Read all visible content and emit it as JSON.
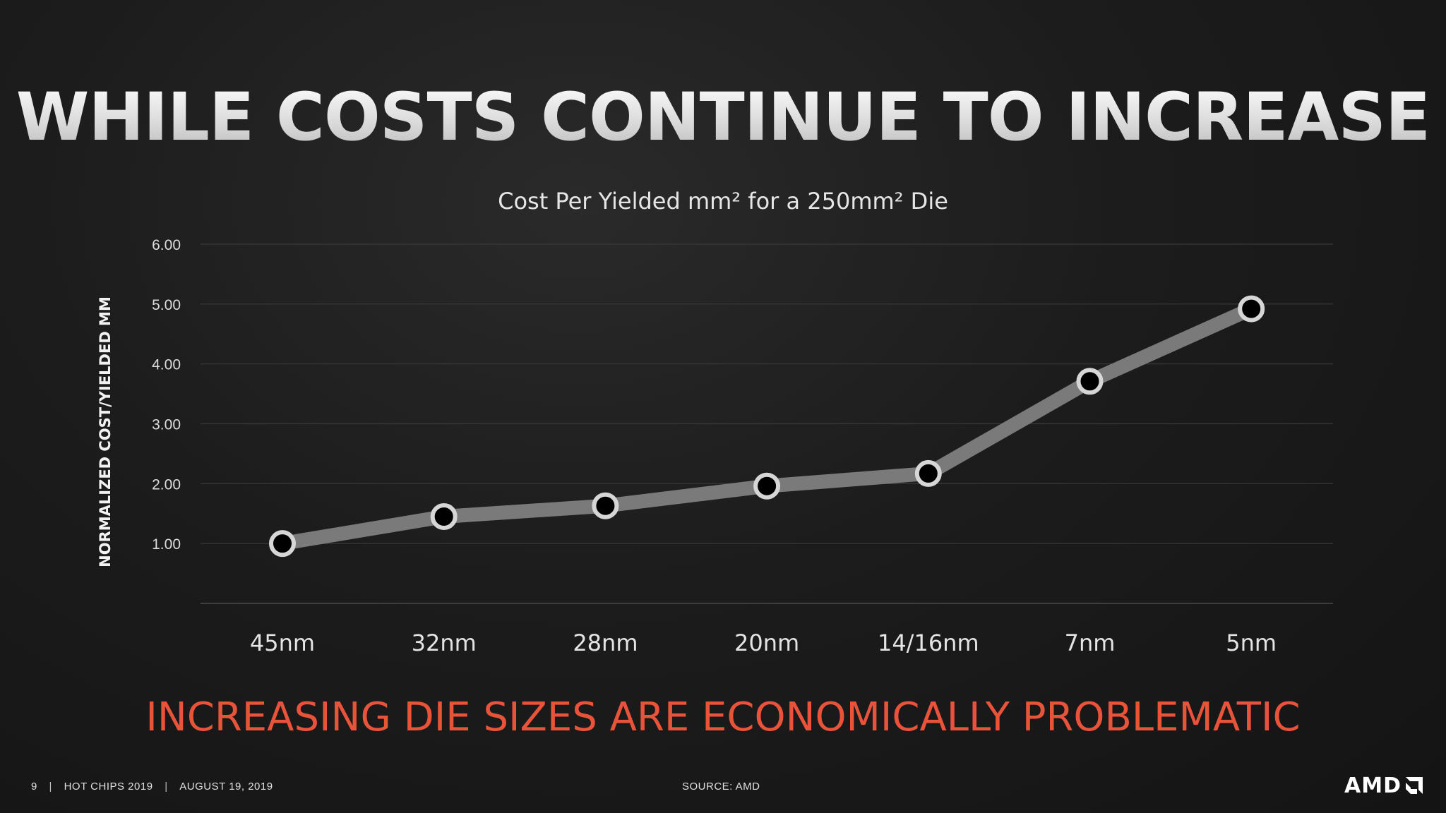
{
  "slide": {
    "title": "WHILE COSTS CONTINUE TO INCREASE",
    "subtitle": "INCREASING DIE SIZES ARE ECONOMICALLY PROBLEMATIC",
    "subtitle_color": "#e8533a"
  },
  "footer": {
    "page_number": "9",
    "event": "HOT CHIPS 2019",
    "date": "AUGUST 19, 2019",
    "separator": "|",
    "source": "SOURCE: AMD",
    "logo_text": "AMD"
  },
  "chart_data": {
    "type": "line",
    "title": "Cost Per Yielded mm² for a 250mm² Die",
    "xlabel": "",
    "ylabel": "NORMALIZED COST/YIELDED MM",
    "categories": [
      "45nm",
      "32nm",
      "28nm",
      "20nm",
      "14/16nm",
      "7nm",
      "5nm"
    ],
    "series": [
      {
        "values": [
          1.0,
          1.45,
          1.63,
          1.96,
          2.17,
          3.71,
          4.92
        ],
        "color": "#7a7a7a"
      }
    ],
    "y_ticks": [
      "1.00",
      "2.00",
      "3.00",
      "4.00",
      "5.00",
      "6.00"
    ],
    "ylim": [
      0,
      6
    ],
    "grid": true,
    "legend": "none"
  }
}
